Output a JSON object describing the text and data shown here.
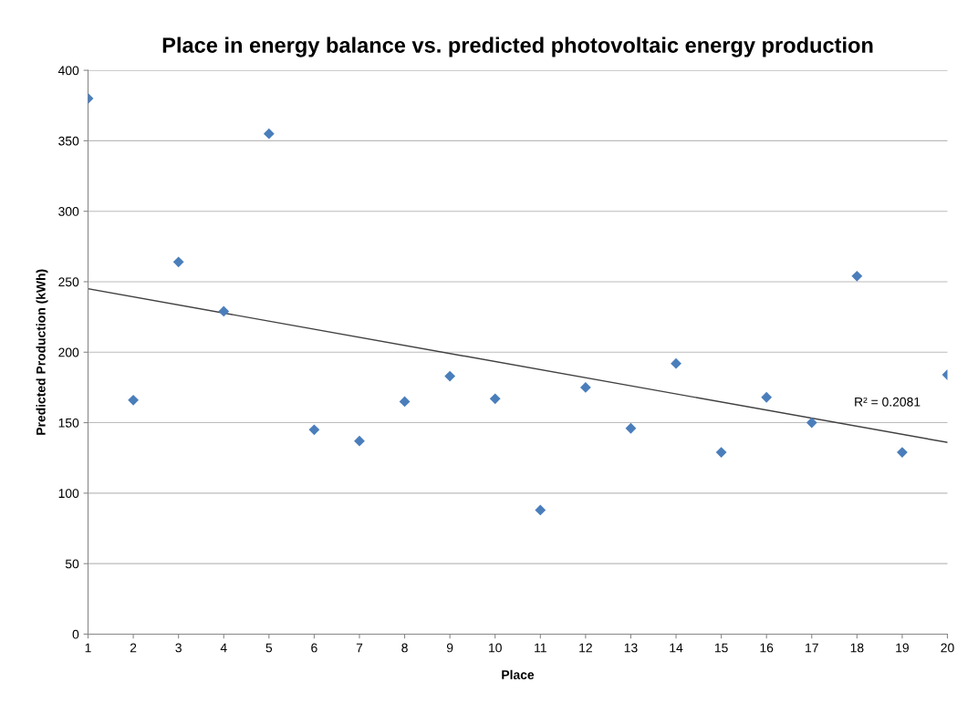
{
  "chart_data": {
    "type": "scatter",
    "title": "Place in energy balance vs. predicted photovoltaic energy production",
    "xlabel": "Place",
    "ylabel": "Predicted Production (kWh)",
    "x": [
      1,
      2,
      3,
      4,
      5,
      6,
      7,
      8,
      9,
      10,
      11,
      12,
      13,
      14,
      15,
      16,
      17,
      18,
      19,
      20
    ],
    "series": [
      {
        "color": "#4a7ebb",
        "marker": "diamond",
        "values": [
          380,
          166,
          264,
          229,
          355,
          145,
          137,
          165,
          183,
          167,
          88,
          175,
          146,
          192,
          129,
          168,
          150,
          254,
          129,
          184
        ]
      },
      {
        "type": "line",
        "color": "#404040",
        "marker": "none",
        "line_style": "solid",
        "x": [
          1,
          20
        ],
        "values": [
          245,
          136
        ]
      }
    ],
    "annotations": [
      "R² = 0.2081"
    ],
    "xlim": [
      1,
      20
    ],
    "xticks": [
      1,
      2,
      3,
      4,
      5,
      6,
      7,
      8,
      9,
      10,
      11,
      12,
      13,
      14,
      15,
      16,
      17,
      18,
      19,
      20
    ],
    "ylim": [
      0,
      400
    ],
    "yticks": [
      0,
      50,
      100,
      150,
      200,
      250,
      300,
      350,
      400
    ],
    "grid": "y",
    "legend": false
  }
}
